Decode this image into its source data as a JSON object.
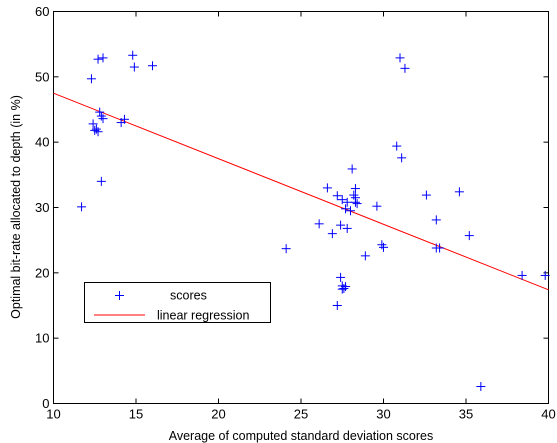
{
  "chart_data": {
    "type": "scatter",
    "title": "",
    "xlabel": "Average of computed standard deviation scores",
    "ylabel": "Optimal bit-rate allocated to depth (in %)",
    "xlim": [
      10,
      40
    ],
    "ylim": [
      0,
      60
    ],
    "xticks": [
      "10",
      "15",
      "20",
      "25",
      "30",
      "35",
      "40"
    ],
    "yticks": [
      "0",
      "10",
      "20",
      "30",
      "40",
      "50",
      "60"
    ],
    "grid": false,
    "legend_position": "bottom-left",
    "series": [
      {
        "name": "scores",
        "marker": "+",
        "color": "#0000ff",
        "points": [
          [
            11.7,
            30.1
          ],
          [
            12.3,
            49.7
          ],
          [
            12.4,
            42.8
          ],
          [
            12.5,
            41.8
          ],
          [
            12.6,
            42.0
          ],
          [
            12.7,
            41.6
          ],
          [
            12.8,
            44.6
          ],
          [
            12.7,
            52.7
          ],
          [
            13.0,
            52.9
          ],
          [
            12.9,
            44.0
          ],
          [
            13.0,
            43.6
          ],
          [
            12.9,
            34.0
          ],
          [
            14.1,
            43.0
          ],
          [
            14.3,
            43.5
          ],
          [
            14.8,
            53.3
          ],
          [
            14.9,
            51.5
          ],
          [
            16.0,
            51.7
          ],
          [
            24.1,
            23.7
          ],
          [
            26.1,
            27.5
          ],
          [
            26.6,
            33.0
          ],
          [
            26.9,
            26.0
          ],
          [
            27.2,
            31.8
          ],
          [
            27.2,
            15.0
          ],
          [
            27.4,
            27.3
          ],
          [
            27.4,
            19.3
          ],
          [
            27.5,
            31.2
          ],
          [
            27.5,
            18.0
          ],
          [
            27.5,
            17.5
          ],
          [
            27.6,
            17.6
          ],
          [
            27.7,
            29.8
          ],
          [
            27.7,
            17.9
          ],
          [
            27.8,
            26.8
          ],
          [
            27.8,
            30.8
          ],
          [
            28.0,
            29.5
          ],
          [
            28.1,
            35.9
          ],
          [
            28.2,
            31.9
          ],
          [
            28.3,
            32.9
          ],
          [
            28.3,
            31.5
          ],
          [
            28.3,
            30.8
          ],
          [
            28.4,
            30.6
          ],
          [
            28.9,
            22.6
          ],
          [
            29.6,
            30.2
          ],
          [
            30.0,
            23.9
          ],
          [
            29.9,
            24.3
          ],
          [
            30.8,
            39.4
          ],
          [
            31.1,
            37.6
          ],
          [
            31.0,
            52.9
          ],
          [
            31.3,
            51.3
          ],
          [
            32.6,
            31.9
          ],
          [
            33.2,
            28.1
          ],
          [
            33.2,
            23.8
          ],
          [
            33.4,
            23.8
          ],
          [
            34.6,
            32.4
          ],
          [
            35.2,
            25.7
          ],
          [
            35.9,
            2.6
          ],
          [
            38.4,
            19.6
          ],
          [
            39.8,
            19.6
          ]
        ]
      },
      {
        "name": "linear regression",
        "type": "line",
        "color": "#ff0000",
        "x": [
          10,
          40
        ],
        "y": [
          47.5,
          17.4
        ]
      }
    ]
  }
}
